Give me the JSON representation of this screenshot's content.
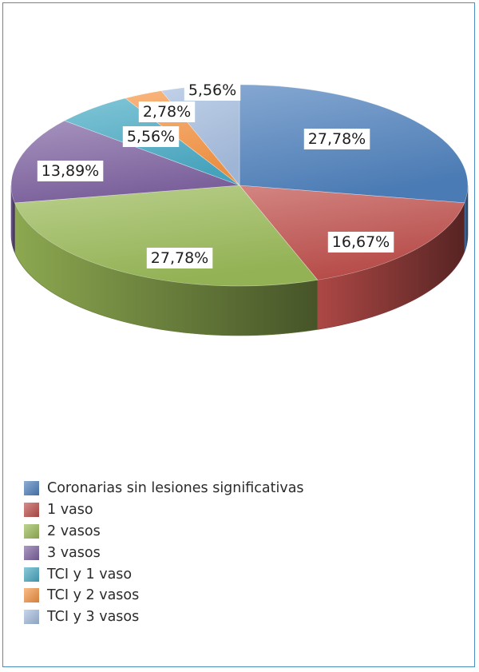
{
  "chart_data": {
    "type": "pie",
    "title": "",
    "categories": [
      "Coronarias sin lesiones significativas",
      "1 vaso",
      "2 vasos",
      "3 vasos",
      "TCI y 1 vaso",
      "TCI y 2 vasos",
      "TCI y 3 vasos"
    ],
    "values": [
      27.78,
      16.67,
      27.78,
      13.89,
      5.56,
      2.78,
      5.56
    ],
    "labels": [
      "27,78%",
      "16,67%",
      "27,78%",
      "13,89%",
      "5,56%",
      "2,78%",
      "5,56%"
    ],
    "colors": [
      "#4f81bd",
      "#c0504d",
      "#9bbb59",
      "#8064a2",
      "#4bacc6",
      "#f79646",
      "#a7bfe0"
    ],
    "legend_position": "bottom-left",
    "style": "3d-pie"
  }
}
